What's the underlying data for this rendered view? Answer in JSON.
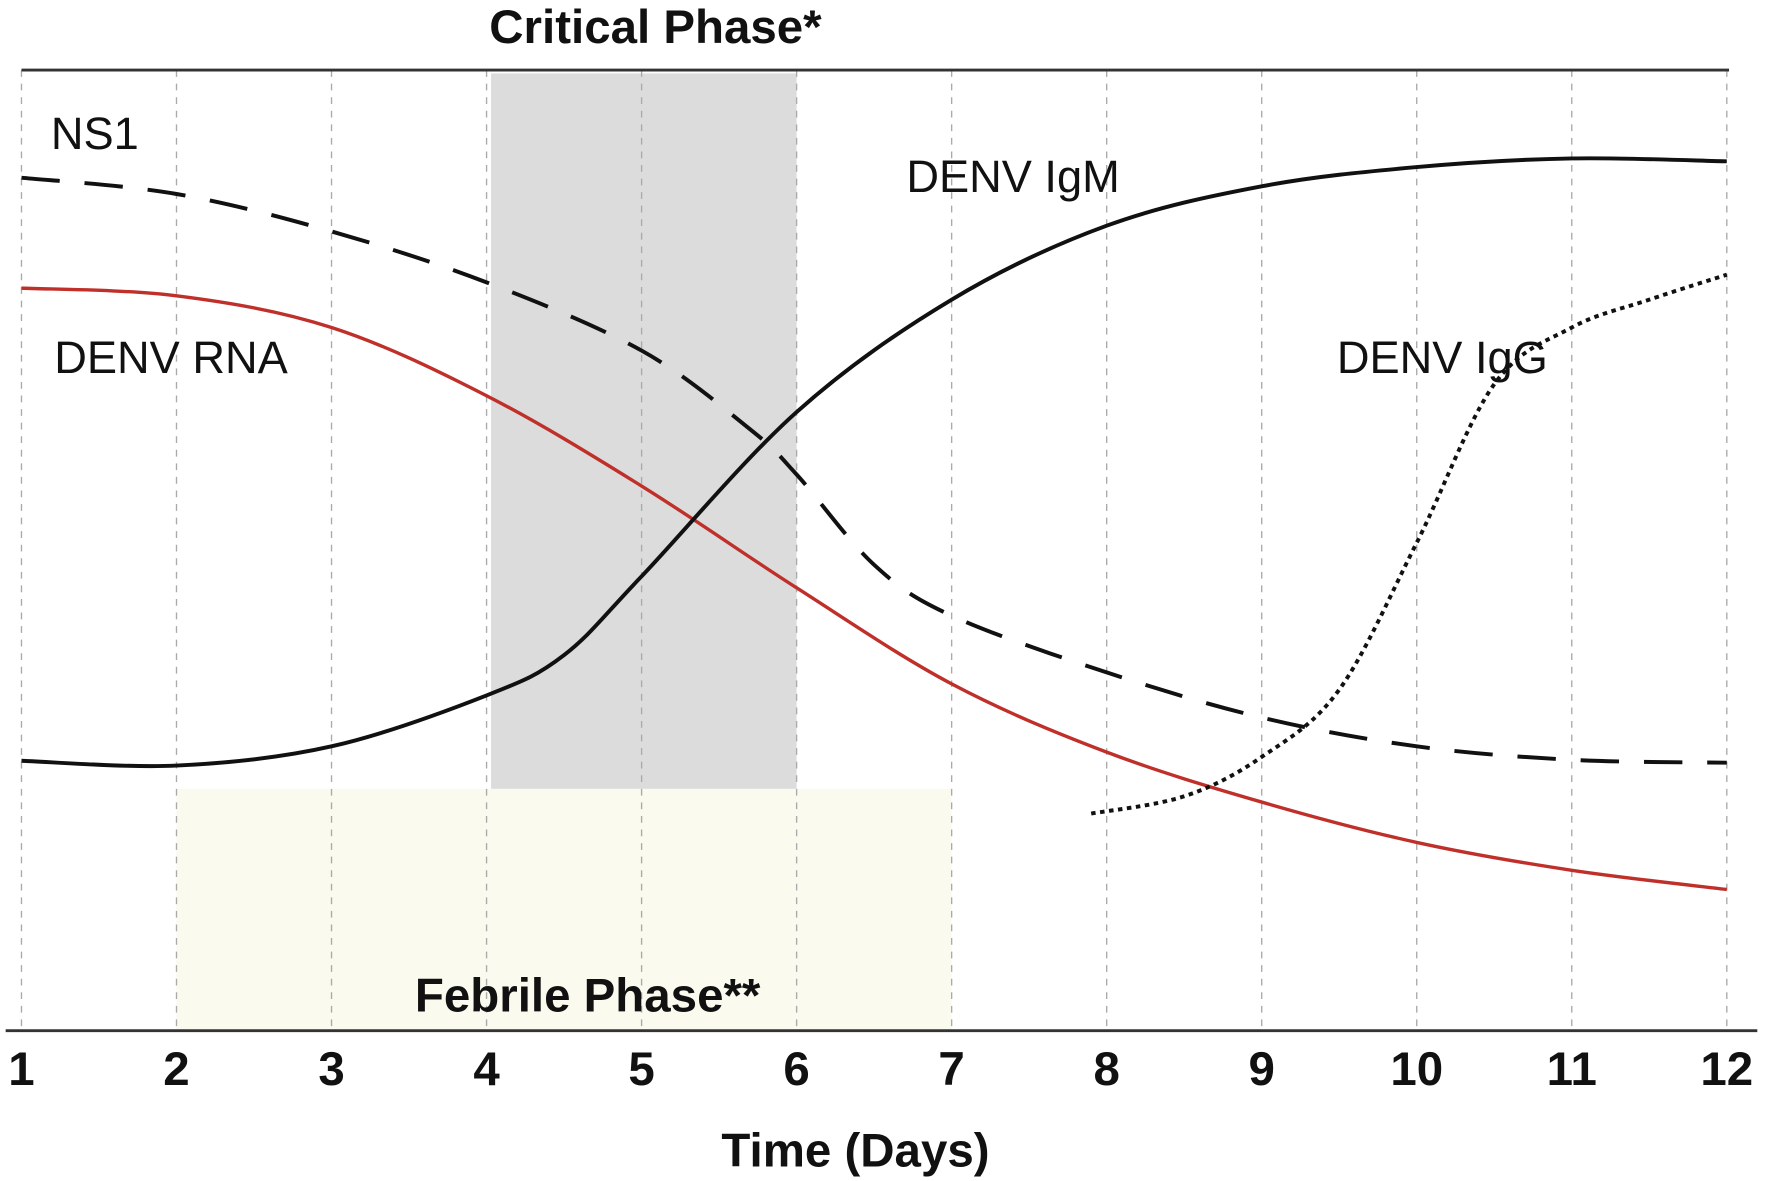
{
  "chart_data": {
    "type": "line",
    "title": "",
    "xlabel": "Time (Days)",
    "ylabel": "",
    "xlim": [
      1,
      12
    ],
    "ylim": [
      0,
      100
    ],
    "x_ticks": [
      "1",
      "2",
      "3",
      "4",
      "5",
      "6",
      "7",
      "8",
      "9",
      "10",
      "11",
      "12"
    ],
    "grid": "vertical dashed",
    "phases": [
      {
        "name": "Critical Phase*",
        "x_start": 4,
        "x_end": 6,
        "color": "#dcdcdc"
      },
      {
        "name": "Febrile Phase**",
        "x_start": 2,
        "x_end": 7,
        "color": "#fafaee"
      }
    ],
    "series": [
      {
        "name": "NS1",
        "style": "dashed",
        "color": "#111111",
        "x": [
          1,
          2,
          3,
          4,
          5,
          5.7,
          6,
          6.5,
          7,
          8,
          9,
          10,
          11,
          12
        ],
        "y": [
          88.8,
          87.1,
          83.2,
          77.9,
          70.8,
          62.6,
          57.9,
          48.5,
          43.2,
          37.3,
          32.6,
          29.6,
          28.2,
          27.9
        ]
      },
      {
        "name": "DENV RNA",
        "style": "solid",
        "color": "#c0302a",
        "x": [
          1,
          2,
          3,
          4,
          5,
          6,
          7,
          8,
          9,
          10,
          11,
          12
        ],
        "y": [
          77.3,
          76.5,
          73.2,
          66.1,
          56.7,
          46.1,
          36.1,
          29.0,
          23.8,
          19.6,
          16.7,
          14.7
        ]
      },
      {
        "name": "DENV IgM",
        "style": "solid",
        "color": "#111111",
        "x": [
          1,
          2,
          3,
          4,
          4.5,
          5,
          6,
          7,
          8,
          9,
          10,
          11,
          12
        ],
        "y": [
          28.1,
          27.6,
          29.6,
          34.9,
          39.1,
          47.3,
          64.4,
          76.1,
          83.8,
          87.9,
          89.9,
          90.8,
          90.5
        ]
      },
      {
        "name": "DENV IgG",
        "style": "dotted",
        "color": "#111111",
        "x": [
          7.9,
          8.5,
          9,
          9.5,
          10,
          10.5,
          11,
          11.5,
          12
        ],
        "y": [
          22.6,
          24.4,
          28.5,
          35.5,
          50.8,
          67.3,
          73.2,
          76.1,
          78.7
        ]
      }
    ]
  }
}
